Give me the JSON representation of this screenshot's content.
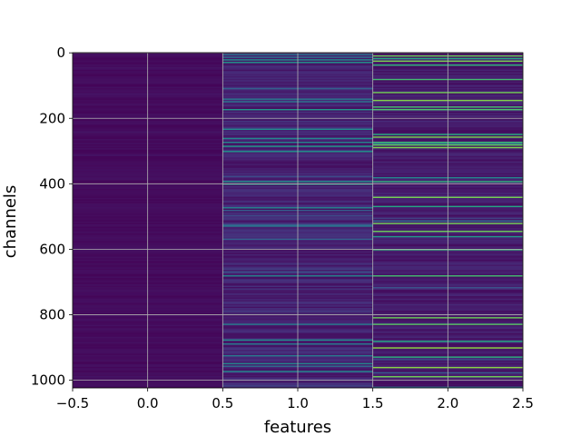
{
  "chart_data": {
    "type": "heatmap",
    "title": "",
    "xlabel": "features",
    "ylabel": "channels",
    "x_columns": [
      0,
      1,
      2
    ],
    "xlim": [
      -0.5,
      2.5
    ],
    "ylim": [
      1023.5,
      -0.5
    ],
    "y_inverted": true,
    "n_rows": 1024,
    "x_ticks": [
      -0.5,
      0.0,
      0.5,
      1.0,
      1.5,
      2.0,
      2.5
    ],
    "x_tick_labels": [
      "−0.5",
      "0.0",
      "0.5",
      "1.0",
      "1.5",
      "2.0",
      "2.5"
    ],
    "y_ticks": [
      0,
      200,
      400,
      600,
      800,
      1000
    ],
    "y_tick_labels": [
      "0",
      "200",
      "400",
      "600",
      "800",
      "1000"
    ],
    "colormap": "viridis",
    "grid": true,
    "column_value_profile": [
      {
        "column": 0,
        "typical_intensity": 0.03,
        "max_intensity": 0.08
      },
      {
        "column": 1,
        "typical_intensity": 0.1,
        "max_intensity": 0.55
      },
      {
        "column": 2,
        "typical_intensity": 0.08,
        "max_intensity": 0.85
      }
    ],
    "bright_rows": [
      {
        "column": 1,
        "rows": [
          4,
          12,
          20,
          30,
          140,
          150,
          175,
          232,
          262,
          272,
          285,
          300,
          395,
          400,
          475,
          530,
          680,
          830,
          878,
          888,
          925,
          950,
          975
        ]
      },
      {
        "column": 2,
        "rows": [
          10,
          18,
          25,
          38,
          80,
          120,
          145,
          165,
          175,
          250,
          258,
          272,
          282,
          290,
          395,
          440,
          470,
          520,
          545,
          600,
          680,
          810,
          830,
          880,
          900,
          930,
          960,
          990
        ]
      }
    ]
  }
}
